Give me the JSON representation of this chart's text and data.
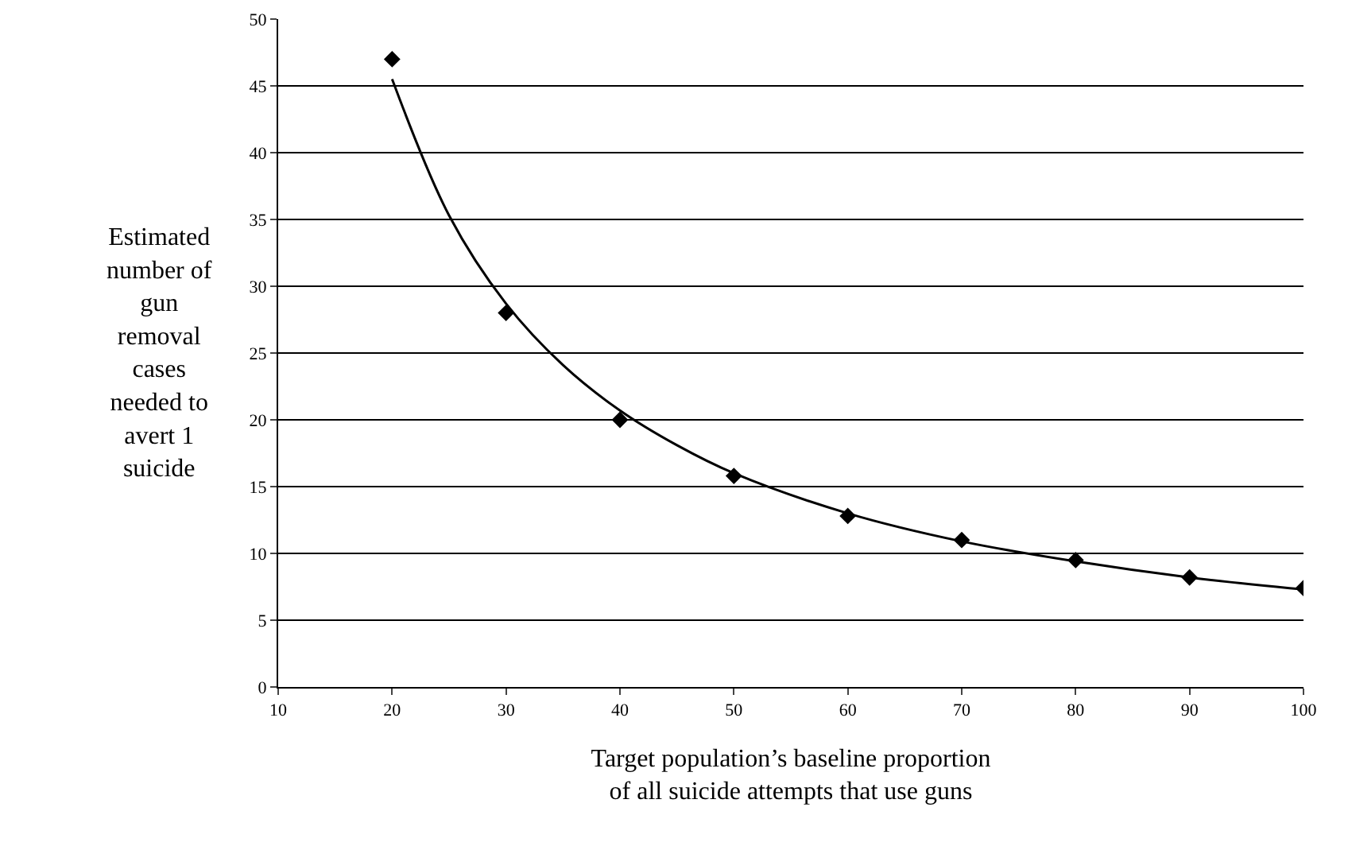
{
  "chart_data": {
    "type": "scatter",
    "xlabel": "Target population’s baseline proportion of all suicide attempts that use guns",
    "ylabel": "Estimated number of gun removal cases needed to avert 1 suicide",
    "x": [
      20,
      30,
      40,
      50,
      60,
      70,
      80,
      90,
      100
    ],
    "series": [
      {
        "color": "#000000",
        "marker": "diamond",
        "values": [
          47,
          28,
          20,
          15.8,
          12.8,
          11,
          9.5,
          8.2,
          7.4
        ]
      },
      {
        "type": "line",
        "color": "#000000",
        "marker": "none",
        "x": [
          20,
          25,
          30,
          35,
          40,
          45,
          50,
          60,
          70,
          80,
          90,
          100
        ],
        "values": [
          45.5,
          35.3,
          28.7,
          24.1,
          20.7,
          18.1,
          16.0,
          13.0,
          10.9,
          9.4,
          8.2,
          7.3
        ]
      }
    ],
    "xlim": [
      10,
      100
    ],
    "xticks": [
      10,
      20,
      30,
      40,
      50,
      60,
      70,
      80,
      90,
      100
    ],
    "ylim": [
      0,
      50
    ],
    "yticks": [
      0,
      5,
      10,
      15,
      20,
      25,
      30,
      35,
      40,
      45,
      50
    ],
    "grid": "y",
    "line_style": "solid"
  }
}
